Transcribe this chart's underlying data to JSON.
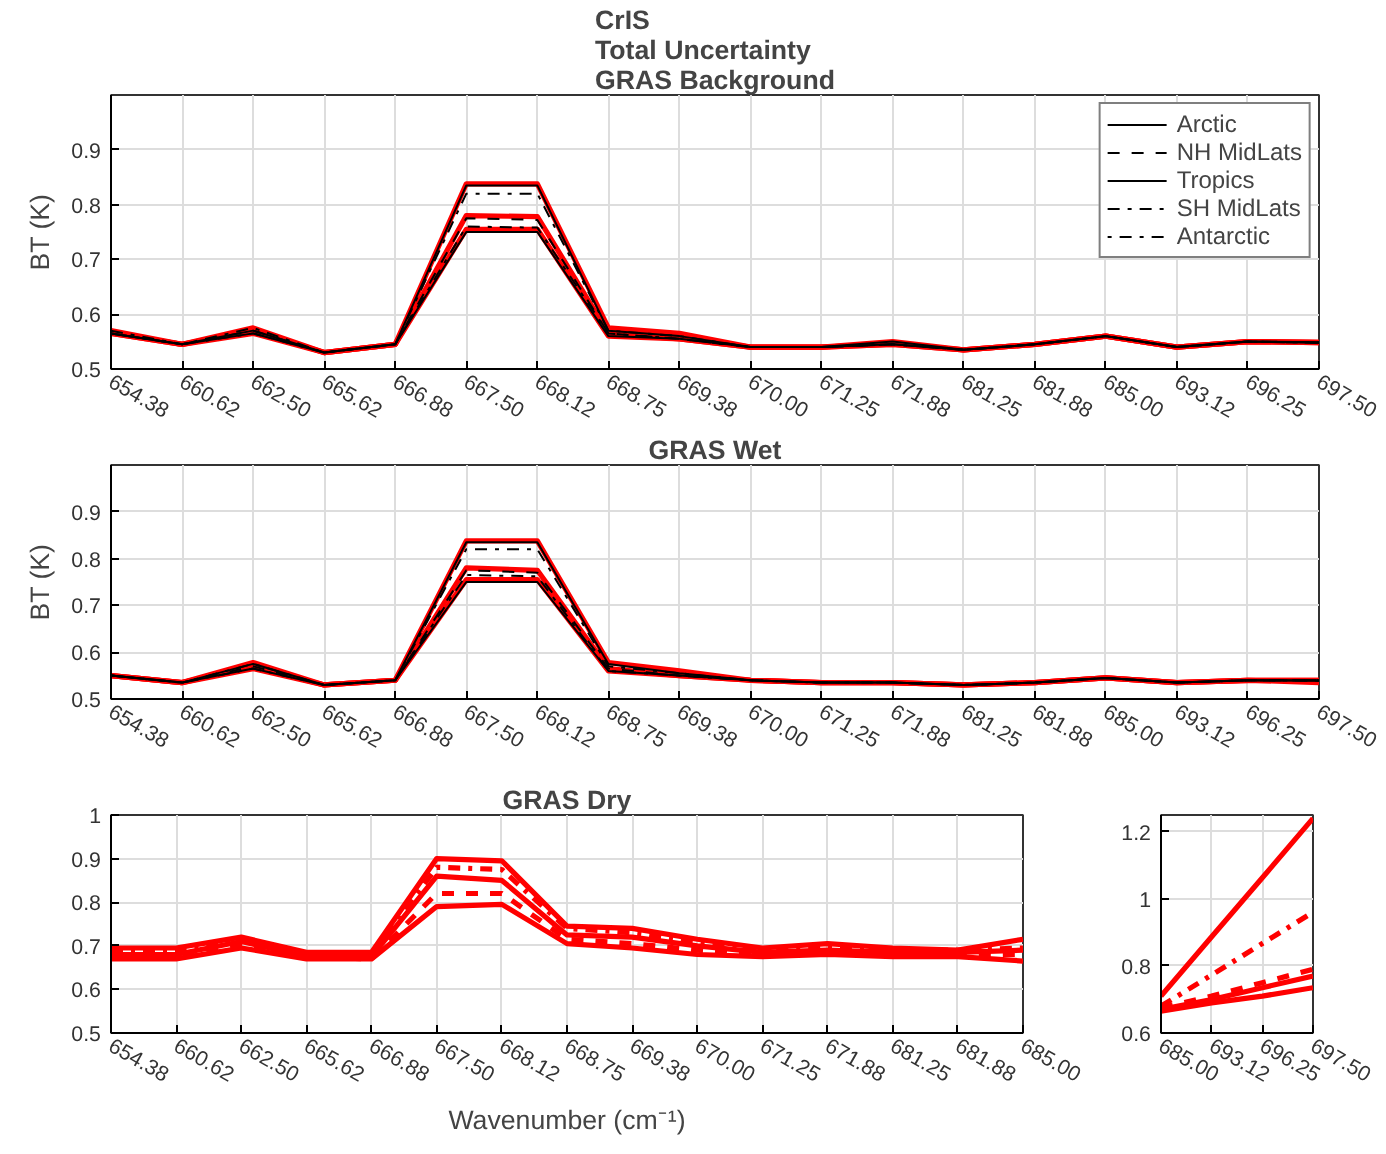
{
  "chart_data": [
    {
      "type": "line",
      "title": "CrIS\nTotal Uncertainty\nGRAS Background",
      "ylabel": "BT (K)",
      "categories": [
        "654.38",
        "660.62",
        "662.50",
        "665.62",
        "666.88",
        "667.50",
        "668.12",
        "668.75",
        "669.38",
        "670.00",
        "671.25",
        "671.88",
        "681.25",
        "681.88",
        "685.00",
        "693.12",
        "696.25",
        "697.50"
      ],
      "ylim": [
        0.5,
        1.0
      ],
      "yticks": [
        0.5,
        0.6,
        0.7,
        0.8,
        0.9
      ],
      "grid": true,
      "legend": "top right",
      "series": [
        {
          "name": "Arctic",
          "color": "#000000",
          "line_style": "solid",
          "values": [
            0.565,
            0.545,
            0.565,
            0.53,
            0.545,
            0.75,
            0.75,
            0.56,
            0.555,
            0.54,
            0.54,
            0.545,
            0.535,
            0.545,
            0.56,
            0.54,
            0.55,
            0.548
          ]
        },
        {
          "name": "NH MidLats",
          "color": "#000000",
          "line_style": "dashed",
          "values": [
            0.565,
            0.545,
            0.57,
            0.53,
            0.545,
            0.775,
            0.772,
            0.565,
            0.555,
            0.54,
            0.54,
            0.545,
            0.535,
            0.545,
            0.56,
            0.54,
            0.55,
            0.548
          ]
        },
        {
          "name": "Tropics",
          "color": "#000000",
          "line_style": "solid",
          "values": [
            0.565,
            0.545,
            0.57,
            0.53,
            0.545,
            0.835,
            0.835,
            0.57,
            0.56,
            0.54,
            0.54,
            0.55,
            0.535,
            0.545,
            0.56,
            0.54,
            0.55,
            0.549
          ]
        },
        {
          "name": "SH MidLats",
          "color": "#000000",
          "line_style": "dashdot",
          "values": [
            0.57,
            0.545,
            0.575,
            0.53,
            0.545,
            0.82,
            0.82,
            0.57,
            0.56,
            0.54,
            0.54,
            0.545,
            0.535,
            0.545,
            0.56,
            0.54,
            0.55,
            0.549
          ]
        },
        {
          "name": "Antarctic",
          "color": "#000000",
          "line_style": "dotdash",
          "values": [
            0.565,
            0.545,
            0.565,
            0.53,
            0.545,
            0.76,
            0.758,
            0.565,
            0.555,
            0.54,
            0.54,
            0.545,
            0.535,
            0.545,
            0.56,
            0.54,
            0.55,
            0.548
          ]
        },
        {
          "color": "#ff0000",
          "line_style": "solid",
          "values": [
            0.57,
            0.545,
            0.575,
            0.53,
            0.545,
            0.838,
            0.838,
            0.575,
            0.565,
            0.54,
            0.54,
            0.55,
            0.535,
            0.545,
            0.56,
            0.54,
            0.55,
            0.549
          ]
        },
        {
          "color": "#ff0000",
          "line_style": "solid",
          "values": [
            0.565,
            0.545,
            0.57,
            0.53,
            0.545,
            0.78,
            0.778,
            0.565,
            0.555,
            0.54,
            0.54,
            0.545,
            0.535,
            0.545,
            0.56,
            0.54,
            0.55,
            0.548
          ]
        },
        {
          "color": "#ff0000",
          "line_style": "solid",
          "values": [
            0.565,
            0.545,
            0.565,
            0.53,
            0.545,
            0.755,
            0.755,
            0.56,
            0.555,
            0.54,
            0.54,
            0.545,
            0.535,
            0.545,
            0.56,
            0.54,
            0.55,
            0.548
          ]
        }
      ]
    },
    {
      "type": "line",
      "title": "GRAS Wet",
      "ylabel": "BT (K)",
      "categories": [
        "654.38",
        "660.62",
        "662.50",
        "665.62",
        "666.88",
        "667.50",
        "668.12",
        "668.75",
        "669.38",
        "670.00",
        "671.25",
        "671.88",
        "681.25",
        "681.88",
        "685.00",
        "693.12",
        "696.25",
        "697.50"
      ],
      "ylim": [
        0.5,
        1.0
      ],
      "yticks": [
        0.5,
        0.6,
        0.7,
        0.8,
        0.9
      ],
      "grid": true,
      "series": [
        {
          "color": "#000000",
          "line_style": "solid",
          "values": [
            0.55,
            0.535,
            0.565,
            0.53,
            0.54,
            0.75,
            0.75,
            0.56,
            0.55,
            0.54,
            0.535,
            0.535,
            0.53,
            0.535,
            0.545,
            0.535,
            0.54,
            0.539
          ]
        },
        {
          "color": "#000000",
          "line_style": "dashed",
          "values": [
            0.55,
            0.535,
            0.57,
            0.53,
            0.54,
            0.775,
            0.77,
            0.565,
            0.55,
            0.54,
            0.535,
            0.535,
            0.53,
            0.535,
            0.545,
            0.535,
            0.54,
            0.54
          ]
        },
        {
          "color": "#000000",
          "line_style": "solid",
          "values": [
            0.55,
            0.535,
            0.575,
            0.53,
            0.54,
            0.835,
            0.835,
            0.575,
            0.555,
            0.54,
            0.535,
            0.535,
            0.53,
            0.535,
            0.545,
            0.535,
            0.54,
            0.54
          ]
        },
        {
          "color": "#000000",
          "line_style": "dashdot",
          "values": [
            0.55,
            0.535,
            0.575,
            0.53,
            0.54,
            0.82,
            0.82,
            0.57,
            0.555,
            0.54,
            0.535,
            0.535,
            0.53,
            0.535,
            0.545,
            0.535,
            0.54,
            0.54
          ]
        },
        {
          "color": "#000000",
          "line_style": "dotdash",
          "values": [
            0.55,
            0.535,
            0.565,
            0.53,
            0.54,
            0.765,
            0.762,
            0.56,
            0.55,
            0.54,
            0.535,
            0.535,
            0.53,
            0.535,
            0.545,
            0.535,
            0.54,
            0.539
          ]
        },
        {
          "color": "#ff0000",
          "line_style": "solid",
          "values": [
            0.55,
            0.535,
            0.578,
            0.53,
            0.54,
            0.838,
            0.838,
            0.578,
            0.56,
            0.54,
            0.535,
            0.535,
            0.53,
            0.535,
            0.545,
            0.535,
            0.54,
            0.54
          ]
        },
        {
          "color": "#ff0000",
          "line_style": "solid",
          "values": [
            0.55,
            0.535,
            0.57,
            0.53,
            0.54,
            0.78,
            0.775,
            0.565,
            0.55,
            0.54,
            0.535,
            0.535,
            0.53,
            0.535,
            0.545,
            0.535,
            0.54,
            0.54
          ]
        },
        {
          "color": "#ff0000",
          "line_style": "solid",
          "values": [
            0.55,
            0.535,
            0.565,
            0.53,
            0.54,
            0.755,
            0.755,
            0.56,
            0.55,
            0.54,
            0.535,
            0.535,
            0.53,
            0.535,
            0.545,
            0.535,
            0.54,
            0.535
          ]
        }
      ]
    },
    {
      "type": "line",
      "title": "GRAS Dry",
      "xlabel": "Wavenumber (cm⁻¹)",
      "categories": [
        "654.38",
        "660.62",
        "662.50",
        "665.62",
        "666.88",
        "667.50",
        "668.12",
        "668.75",
        "669.38",
        "670.00",
        "671.25",
        "671.88",
        "681.25",
        "681.88",
        "685.00"
      ],
      "ylim": [
        0.5,
        1.0
      ],
      "yticks": [
        0.5,
        0.6,
        0.7,
        0.8,
        0.9,
        1
      ],
      "grid": true,
      "series": [
        {
          "color": "#ff0000",
          "line_style": "solid",
          "values": [
            0.67,
            0.67,
            0.695,
            0.67,
            0.67,
            0.79,
            0.795,
            0.705,
            0.695,
            0.68,
            0.675,
            0.68,
            0.675,
            0.675,
            0.665
          ]
        },
        {
          "color": "#ff0000",
          "line_style": "dashed",
          "values": [
            0.675,
            0.675,
            0.7,
            0.675,
            0.67,
            0.82,
            0.82,
            0.715,
            0.705,
            0.69,
            0.68,
            0.685,
            0.68,
            0.68,
            0.68
          ]
        },
        {
          "color": "#ff0000",
          "line_style": "solid",
          "values": [
            0.695,
            0.695,
            0.72,
            0.685,
            0.685,
            0.9,
            0.895,
            0.745,
            0.74,
            0.715,
            0.695,
            0.705,
            0.695,
            0.69,
            0.715
          ]
        },
        {
          "color": "#ff0000",
          "line_style": "dashdot",
          "values": [
            0.685,
            0.685,
            0.715,
            0.68,
            0.68,
            0.88,
            0.875,
            0.74,
            0.73,
            0.71,
            0.69,
            0.7,
            0.69,
            0.69,
            0.695
          ]
        },
        {
          "color": "#ff0000",
          "line_style": "solid",
          "values": [
            0.68,
            0.68,
            0.71,
            0.675,
            0.675,
            0.86,
            0.85,
            0.725,
            0.72,
            0.7,
            0.685,
            0.69,
            0.685,
            0.685,
            0.69
          ]
        }
      ]
    },
    {
      "type": "line",
      "categories": [
        "685.00",
        "693.12",
        "696.25",
        "697.50"
      ],
      "ylim": [
        0.6,
        1.25
      ],
      "yticks": [
        0.6,
        0.8,
        1,
        1.2
      ],
      "grid": true,
      "series": [
        {
          "color": "#ff0000",
          "line_style": "solid",
          "values": [
            0.665,
            0.69,
            0.71,
            0.735
          ]
        },
        {
          "color": "#ff0000",
          "line_style": "dashed",
          "values": [
            0.675,
            0.71,
            0.75,
            0.79
          ]
        },
        {
          "color": "#ff0000",
          "line_style": "solid",
          "values": [
            0.71,
            0.887,
            1.063,
            1.24
          ]
        },
        {
          "color": "#ff0000",
          "line_style": "dashdot",
          "values": [
            0.68,
            0.773,
            0.867,
            0.96
          ]
        },
        {
          "color": "#ff0000",
          "line_style": "solid",
          "values": [
            0.67,
            0.7,
            0.735,
            0.77
          ]
        }
      ]
    }
  ]
}
